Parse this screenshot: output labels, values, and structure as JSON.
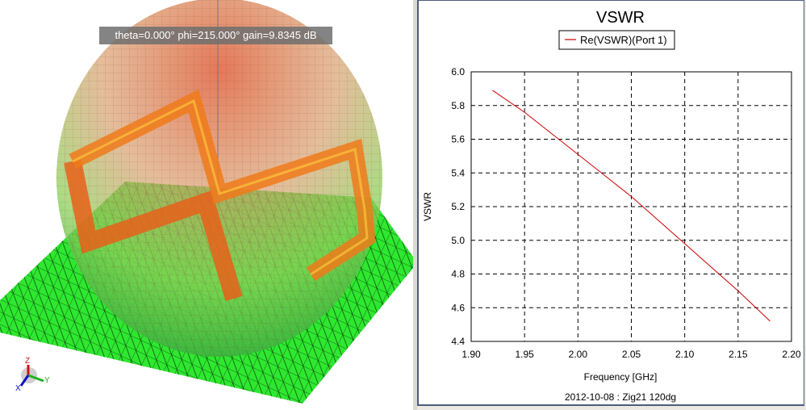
{
  "view3d": {
    "tooltip": "theta=0.000° phi=215.000° gain=9.8345 dB",
    "axes": {
      "z": "Z",
      "y": "Y",
      "x": "X"
    }
  },
  "chart_data": {
    "type": "line",
    "title": "VSWR",
    "xlabel": "Frequency [GHz]",
    "ylabel": "VSWR",
    "footer": "2012-10-08 : Zig21 120dg",
    "xlim": [
      1.9,
      2.2
    ],
    "ylim": [
      4.4,
      6.0
    ],
    "xticks": [
      "1.90",
      "1.95",
      "2.00",
      "2.05",
      "2.10",
      "2.15",
      "2.20"
    ],
    "yticks": [
      "4.4",
      "4.6",
      "4.8",
      "5.0",
      "5.2",
      "5.4",
      "5.6",
      "5.8",
      "6.0"
    ],
    "grid": true,
    "legend_position": "top-center",
    "series": [
      {
        "name": "Re(VSWR)(Port 1)",
        "color": "#cc0000",
        "x": [
          1.92,
          1.95,
          2.0,
          2.05,
          2.1,
          2.15,
          2.18
        ],
        "y": [
          5.89,
          5.76,
          5.51,
          5.26,
          4.98,
          4.7,
          4.52
        ]
      }
    ]
  }
}
